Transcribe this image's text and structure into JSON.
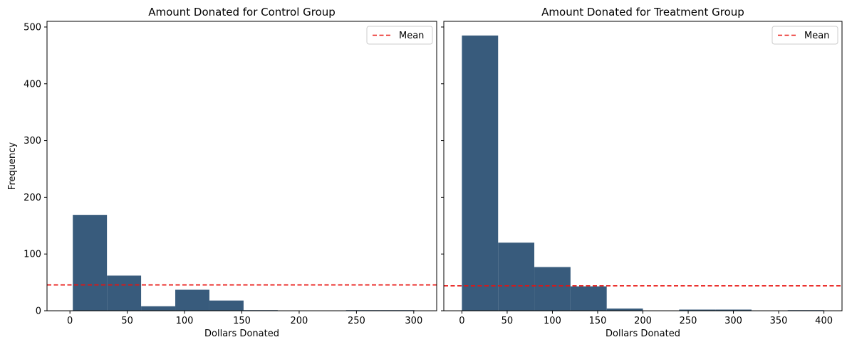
{
  "colors": {
    "bar": "#385b7c",
    "mean_line": "#e8120e",
    "axes": "#000000"
  },
  "chart_data": [
    {
      "type": "bar",
      "title": "Amount Donated for Control Group",
      "xlabel": "Dollars Donated",
      "ylabel": "Frequency",
      "xlim": [
        -20,
        320
      ],
      "ylim": [
        0,
        510
      ],
      "xticks": [
        0,
        50,
        100,
        150,
        200,
        250,
        300
      ],
      "yticks": [
        0,
        100,
        200,
        300,
        400,
        500
      ],
      "show_y_tick_labels": true,
      "bin_edges": [
        2.5,
        32.3,
        62.1,
        91.9,
        121.7,
        151.5,
        181.3,
        211.1,
        240.9,
        270.7,
        300.5
      ],
      "counts": [
        169,
        62,
        8,
        37,
        18,
        1,
        0,
        0,
        1,
        1
      ],
      "mean_line": {
        "label": "Mean",
        "value": 45.5
      },
      "legend": {
        "position": "top-right",
        "entries": [
          "Mean"
        ]
      },
      "grid": false
    },
    {
      "type": "bar",
      "title": "Amount Donated for Treatment Group",
      "xlabel": "Dollars Donated",
      "ylabel": "",
      "xlim": [
        -20,
        420
      ],
      "ylim": [
        0,
        510
      ],
      "xticks": [
        0,
        50,
        100,
        150,
        200,
        250,
        300,
        350,
        400
      ],
      "yticks": [
        0,
        100,
        200,
        300,
        400,
        500
      ],
      "show_y_tick_labels": false,
      "bin_edges": [
        0,
        40,
        80,
        120,
        160,
        200,
        240,
        280,
        320,
        360,
        400
      ],
      "counts": [
        485,
        120,
        77,
        43,
        4,
        0,
        2,
        2,
        0,
        1
      ],
      "mean_line": {
        "label": "Mean",
        "value": 43.9
      },
      "legend": {
        "position": "top-right",
        "entries": [
          "Mean"
        ]
      },
      "grid": false
    }
  ]
}
